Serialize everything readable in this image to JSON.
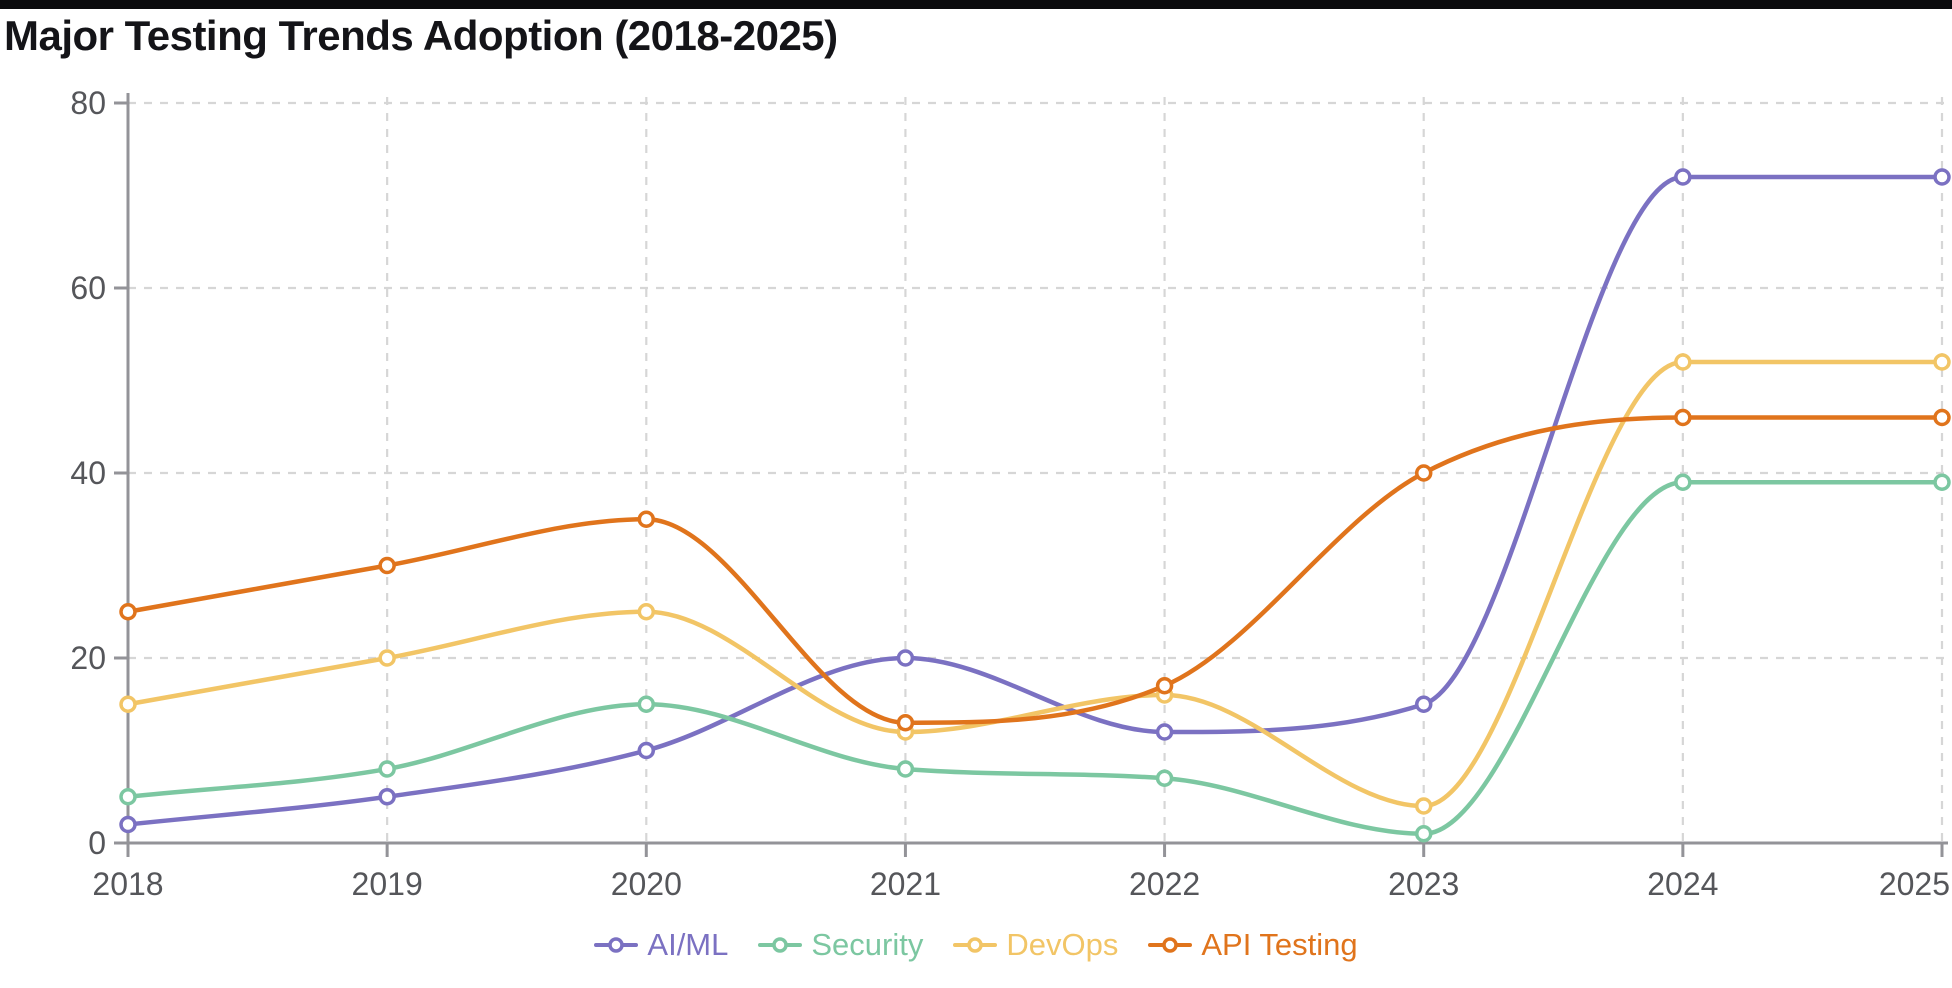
{
  "page": {
    "title": "Major Testing Trends Adoption (2018-2025)"
  },
  "chart_data": {
    "type": "line",
    "title": "Major Testing Trends Adoption (2018-2025)",
    "x": [
      2018,
      2019,
      2020,
      2021,
      2022,
      2023,
      2024,
      2025
    ],
    "series": [
      {
        "name": "AI/ML",
        "color": "#7b71c2",
        "values": [
          2,
          5,
          10,
          20,
          12,
          15,
          72,
          72
        ]
      },
      {
        "name": "Security",
        "color": "#7cc7a1",
        "values": [
          5,
          8,
          15,
          8,
          7,
          1,
          39,
          39
        ]
      },
      {
        "name": "DevOps",
        "color": "#f2c566",
        "values": [
          15,
          20,
          25,
          12,
          16,
          4,
          52,
          52
        ]
      },
      {
        "name": "API Testing",
        "color": "#e0741c",
        "values": [
          25,
          30,
          35,
          13,
          17,
          40,
          46,
          46
        ]
      }
    ],
    "xlabel": "",
    "ylabel": "",
    "ylim": [
      0,
      80
    ],
    "yticks": [
      0,
      20,
      40,
      60,
      80
    ],
    "grid": "dashed horizontal and vertical",
    "legend_position": "bottom",
    "marker": "open-circle",
    "axis_text_color": "#55565a",
    "axis_line_color": "#939398",
    "grid_color": "#d6d6d6",
    "point_fill": "#ffffff"
  }
}
